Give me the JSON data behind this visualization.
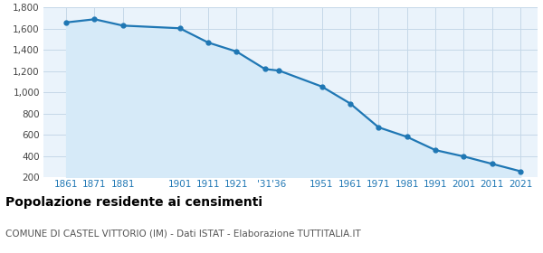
{
  "years": [
    1861,
    1871,
    1881,
    1901,
    1911,
    1921,
    1931,
    1936,
    1951,
    1961,
    1971,
    1981,
    1991,
    2001,
    2011,
    2021
  ],
  "population": [
    1660,
    1690,
    1630,
    1605,
    1470,
    1385,
    1220,
    1205,
    1055,
    895,
    670,
    580,
    455,
    395,
    325,
    255
  ],
  "line_color": "#1f77b4",
  "fill_color": "#d6eaf8",
  "marker_color": "#1f77b4",
  "bg_color": "#eaf3fb",
  "grid_color": "#c5d8e8",
  "title": "Popolazione residente ai censimenti",
  "subtitle": "COMUNE DI CASTEL VITTORIO (IM) - Dati ISTAT - Elaborazione TUTTITALIA.IT",
  "ylim": [
    200,
    1800
  ],
  "yticks": [
    200,
    400,
    600,
    800,
    1000,
    1200,
    1400,
    1600,
    1800
  ],
  "title_fontsize": 10,
  "subtitle_fontsize": 7.5
}
